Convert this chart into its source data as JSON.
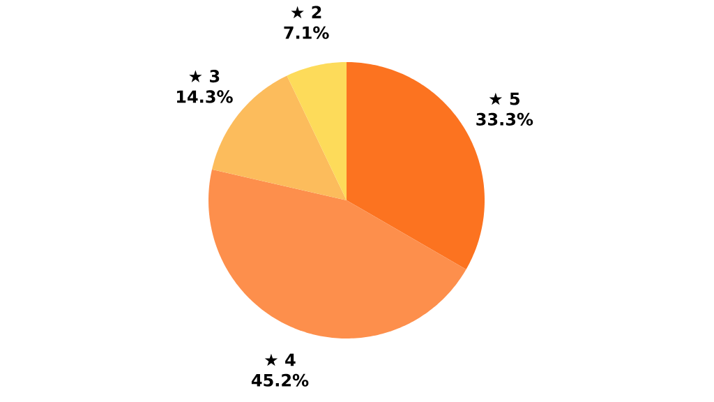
{
  "chart_data": {
    "type": "pie",
    "categories": [
      "★ 5",
      "★ 4",
      "★ 3",
      "★ 2"
    ],
    "values": [
      33.3,
      45.2,
      14.3,
      7.1
    ],
    "value_labels": [
      "33.3%",
      "45.2%",
      "14.3%",
      "7.1%"
    ],
    "colors": [
      "#fc7320",
      "#fd8f4c",
      "#fcbc5c",
      "#fddb5a"
    ]
  }
}
